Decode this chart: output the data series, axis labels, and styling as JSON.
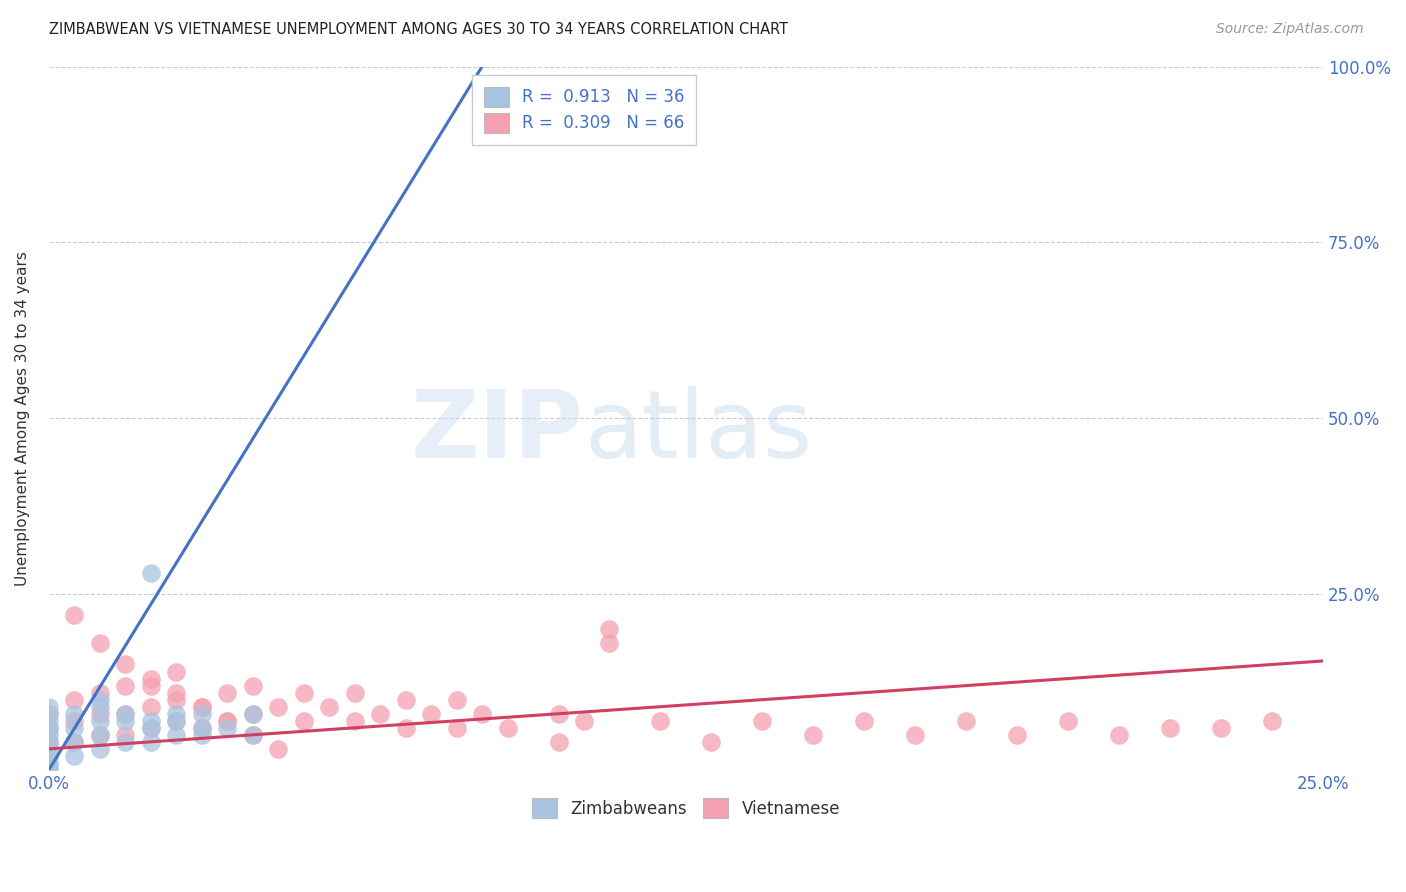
{
  "title": "ZIMBABWEAN VS VIETNAMESE UNEMPLOYMENT AMONG AGES 30 TO 34 YEARS CORRELATION CHART",
  "source": "Source: ZipAtlas.com",
  "ylabel": "Unemployment Among Ages 30 to 34 years",
  "xlim": [
    0,
    0.25
  ],
  "ylim": [
    0,
    1.0
  ],
  "x_ticks": [
    0.0,
    0.05,
    0.1,
    0.15,
    0.2,
    0.25
  ],
  "x_tick_labels": [
    "0.0%",
    "",
    "",
    "",
    "",
    "25.0%"
  ],
  "y_ticks": [
    0.0,
    0.25,
    0.5,
    0.75,
    1.0
  ],
  "y_tick_labels": [
    "",
    "25.0%",
    "50.0%",
    "75.0%",
    "100.0%"
  ],
  "zim_color": "#a8c4e0",
  "viet_color": "#f4a0b0",
  "zim_line_color": "#4472c4",
  "viet_line_color": "#d04060",
  "watermark_zip": "ZIP",
  "watermark_atlas": "atlas",
  "zim_line_x": [
    0.0,
    0.085
  ],
  "zim_line_y": [
    0.0,
    1.0
  ],
  "viet_line_x": [
    0.0,
    0.25
  ],
  "viet_line_y": [
    0.03,
    0.155
  ],
  "zim_pts_x": [
    0.02,
    0.0,
    0.0,
    0.0,
    0.0,
    0.0,
    0.0,
    0.0,
    0.0,
    0.0,
    0.0,
    0.0,
    0.005,
    0.005,
    0.005,
    0.01,
    0.01,
    0.01,
    0.01,
    0.015,
    0.015,
    0.02,
    0.02,
    0.025,
    0.025,
    0.03,
    0.03,
    0.035,
    0.04,
    0.04,
    0.005,
    0.01,
    0.015,
    0.02,
    0.025,
    0.03
  ],
  "zim_pts_y": [
    0.28,
    0.0,
    0.005,
    0.01,
    0.02,
    0.03,
    0.04,
    0.05,
    0.06,
    0.07,
    0.08,
    0.09,
    0.02,
    0.04,
    0.06,
    0.03,
    0.05,
    0.07,
    0.09,
    0.04,
    0.07,
    0.04,
    0.07,
    0.05,
    0.08,
    0.05,
    0.08,
    0.06,
    0.05,
    0.08,
    0.08,
    0.1,
    0.08,
    0.06,
    0.07,
    0.06
  ],
  "viet_pts_x": [
    0.0,
    0.0,
    0.0,
    0.0,
    0.005,
    0.005,
    0.005,
    0.01,
    0.01,
    0.01,
    0.015,
    0.015,
    0.015,
    0.02,
    0.02,
    0.02,
    0.025,
    0.025,
    0.025,
    0.03,
    0.03,
    0.035,
    0.035,
    0.04,
    0.04,
    0.045,
    0.05,
    0.05,
    0.055,
    0.06,
    0.06,
    0.065,
    0.07,
    0.07,
    0.075,
    0.08,
    0.08,
    0.085,
    0.09,
    0.1,
    0.1,
    0.105,
    0.11,
    0.11,
    0.12,
    0.13,
    0.14,
    0.15,
    0.16,
    0.17,
    0.18,
    0.19,
    0.2,
    0.21,
    0.22,
    0.23,
    0.24,
    0.005,
    0.01,
    0.015,
    0.02,
    0.025,
    0.03,
    0.035,
    0.04,
    0.045
  ],
  "viet_pts_y": [
    0.02,
    0.04,
    0.06,
    0.08,
    0.04,
    0.07,
    0.1,
    0.05,
    0.08,
    0.11,
    0.05,
    0.08,
    0.12,
    0.06,
    0.09,
    0.12,
    0.07,
    0.1,
    0.14,
    0.06,
    0.09,
    0.07,
    0.11,
    0.08,
    0.12,
    0.09,
    0.07,
    0.11,
    0.09,
    0.07,
    0.11,
    0.08,
    0.06,
    0.1,
    0.08,
    0.06,
    0.1,
    0.08,
    0.06,
    0.08,
    0.04,
    0.07,
    0.2,
    0.18,
    0.07,
    0.04,
    0.07,
    0.05,
    0.07,
    0.05,
    0.07,
    0.05,
    0.07,
    0.05,
    0.06,
    0.06,
    0.07,
    0.22,
    0.18,
    0.15,
    0.13,
    0.11,
    0.09,
    0.07,
    0.05,
    0.03
  ]
}
